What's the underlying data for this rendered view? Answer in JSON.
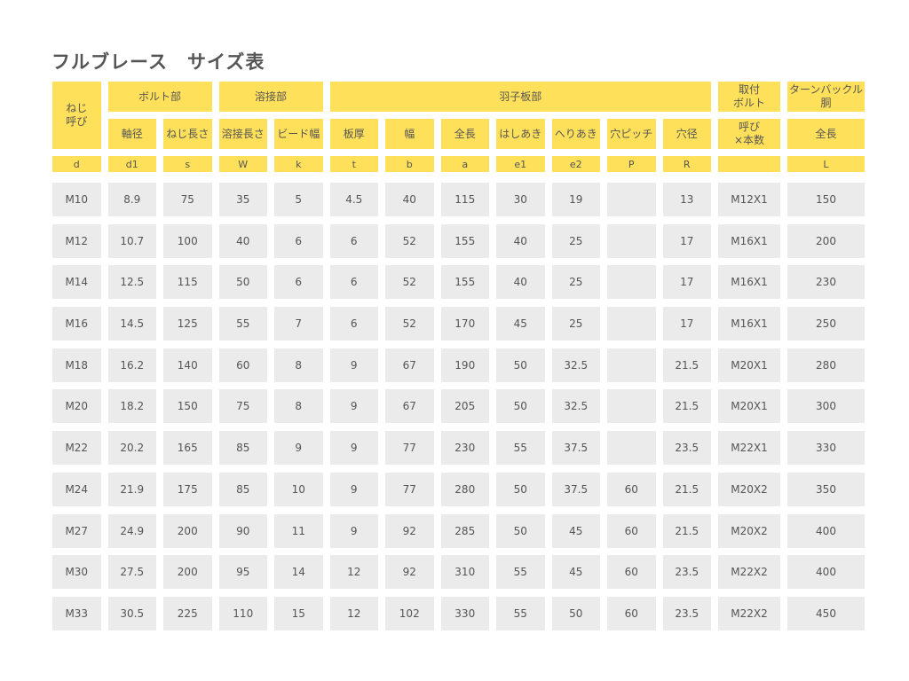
{
  "title": "フルブレース　サイズ表",
  "header": {
    "nominal": "ねじ\n呼び",
    "groups": [
      "ボルト部",
      "溶接部",
      "羽子板部",
      "取付\nボルト",
      "ターンバックル\n胴"
    ],
    "subheaders": [
      "軸径",
      "ねじ長さ",
      "溶接長さ",
      "ビード幅",
      "板厚",
      "幅",
      "全長",
      "はしあき",
      "へりあき",
      "穴ピッチ",
      "穴径",
      "呼び\n×本数",
      "全長"
    ],
    "symbols": [
      "d",
      "d1",
      "s",
      "W",
      "k",
      "t",
      "b",
      "a",
      "e1",
      "e2",
      "P",
      "R",
      "",
      "L"
    ]
  },
  "rows": [
    [
      "M10",
      "8.9",
      "75",
      "35",
      "5",
      "4.5",
      "40",
      "115",
      "30",
      "19",
      "",
      "13",
      "M12X1",
      "150"
    ],
    [
      "M12",
      "10.7",
      "100",
      "40",
      "6",
      "6",
      "52",
      "155",
      "40",
      "25",
      "",
      "17",
      "M16X1",
      "200"
    ],
    [
      "M14",
      "12.5",
      "115",
      "50",
      "6",
      "6",
      "52",
      "155",
      "40",
      "25",
      "",
      "17",
      "M16X1",
      "230"
    ],
    [
      "M16",
      "14.5",
      "125",
      "55",
      "7",
      "6",
      "52",
      "170",
      "45",
      "25",
      "",
      "17",
      "M16X1",
      "250"
    ],
    [
      "M18",
      "16.2",
      "140",
      "60",
      "8",
      "9",
      "67",
      "190",
      "50",
      "32.5",
      "",
      "21.5",
      "M20X1",
      "280"
    ],
    [
      "M20",
      "18.2",
      "150",
      "75",
      "8",
      "9",
      "67",
      "205",
      "50",
      "32.5",
      "",
      "21.5",
      "M20X1",
      "300"
    ],
    [
      "M22",
      "20.2",
      "165",
      "85",
      "9",
      "9",
      "77",
      "230",
      "55",
      "37.5",
      "",
      "23.5",
      "M22X1",
      "330"
    ],
    [
      "M24",
      "21.9",
      "175",
      "85",
      "10",
      "9",
      "77",
      "280",
      "50",
      "37.5",
      "60",
      "21.5",
      "M20X2",
      "350"
    ],
    [
      "M27",
      "24.9",
      "200",
      "90",
      "11",
      "9",
      "92",
      "285",
      "50",
      "45",
      "60",
      "21.5",
      "M20X2",
      "400"
    ],
    [
      "M30",
      "27.5",
      "200",
      "95",
      "14",
      "12",
      "92",
      "310",
      "55",
      "45",
      "60",
      "23.5",
      "M22X2",
      "400"
    ],
    [
      "M33",
      "30.5",
      "225",
      "110",
      "15",
      "12",
      "102",
      "330",
      "55",
      "50",
      "60",
      "23.5",
      "M22X2",
      "450"
    ]
  ],
  "colors": {
    "header": "#ffe05a",
    "cell": "#ebebeb",
    "text": "#555555"
  }
}
